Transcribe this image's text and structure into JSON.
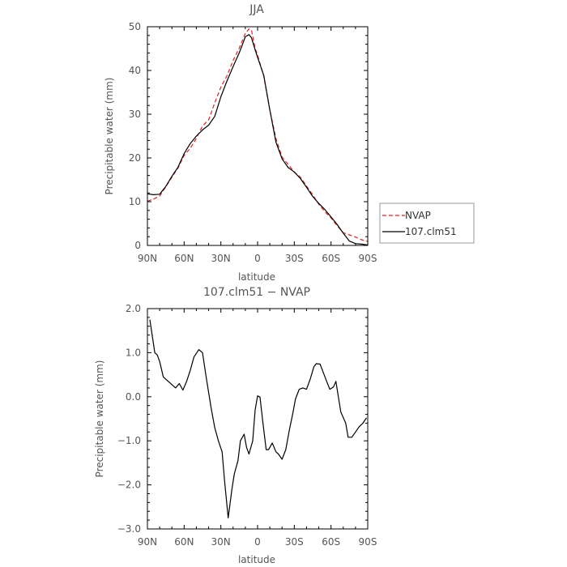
{
  "chart_data": [
    {
      "type": "line",
      "title": "JJA",
      "xlabel": "latitude",
      "ylabel": "Precipitable water (mm)",
      "xlim": [
        90,
        -90
      ],
      "ylim": [
        0,
        50
      ],
      "xticks": [
        90,
        60,
        30,
        0,
        -30,
        -60,
        -90
      ],
      "xtick_labels": [
        "90N",
        "60N",
        "30N",
        "0",
        "30S",
        "60S",
        "90S"
      ],
      "yticks": [
        0,
        10,
        20,
        30,
        40,
        50
      ],
      "ytick_labels": [
        "0",
        "10",
        "20",
        "30",
        "40",
        "50"
      ],
      "grid": false,
      "legend_position": "right-bottom",
      "series": [
        {
          "name": "NVAP",
          "color": "#dd2222",
          "dash": "dashed",
          "x": [
            90,
            85,
            80,
            75,
            70,
            65,
            60,
            55,
            50,
            45,
            40,
            35,
            30,
            25,
            20,
            15,
            10,
            7,
            5,
            2,
            0,
            -5,
            -10,
            -15,
            -20,
            -25,
            -30,
            -35,
            -40,
            -45,
            -50,
            -55,
            -60,
            -65,
            -70,
            -75,
            -80,
            -85,
            -90
          ],
          "values": [
            10.1,
            10.6,
            11.3,
            13.4,
            15.6,
            17.7,
            20.6,
            22.2,
            24.5,
            27.3,
            28.7,
            32.6,
            36.2,
            38.8,
            42.3,
            45.1,
            48.5,
            49.5,
            49.3,
            45.0,
            43.5,
            38.7,
            31.0,
            24.4,
            20.2,
            18.5,
            16.8,
            15.6,
            13.6,
            11.6,
            9.4,
            7.7,
            6.3,
            4.5,
            2.9,
            2.4,
            1.9,
            1.3,
            0.9
          ]
        },
        {
          "name": "107.clm51",
          "color": "#000000",
          "dash": "solid",
          "x": [
            90,
            85,
            80,
            75,
            70,
            65,
            60,
            55,
            50,
            45,
            40,
            35,
            30,
            25,
            20,
            15,
            10,
            7,
            5,
            2,
            0,
            -5,
            -10,
            -15,
            -20,
            -25,
            -30,
            -35,
            -40,
            -45,
            -50,
            -55,
            -60,
            -65,
            -70,
            -75,
            -80,
            -85,
            -90
          ],
          "values": [
            11.8,
            11.6,
            11.7,
            13.5,
            15.8,
            17.9,
            21.0,
            23.3,
            25.0,
            26.4,
            27.5,
            29.5,
            34.0,
            37.6,
            40.9,
            44.0,
            47.7,
            48.2,
            47.5,
            44.7,
            43.0,
            38.9,
            31.0,
            23.6,
            19.8,
            17.8,
            16.8,
            15.3,
            13.3,
            11.2,
            9.6,
            8.2,
            6.5,
            4.8,
            2.8,
            1.0,
            0.4,
            0.3,
            0.1
          ]
        }
      ]
    },
    {
      "type": "line",
      "title": "107.clm51 − NVAP",
      "xlabel": "latitude",
      "ylabel": "Precipitable water (mm)",
      "xlim": [
        90,
        -90
      ],
      "ylim": [
        -3.0,
        2.0
      ],
      "xticks": [
        90,
        60,
        30,
        0,
        -30,
        -60,
        -90
      ],
      "xtick_labels": [
        "90N",
        "60N",
        "30N",
        "0",
        "30S",
        "60S",
        "90S"
      ],
      "yticks": [
        2.0,
        1.0,
        0.0,
        -1.0,
        -2.0,
        -3.0
      ],
      "ytick_labels": [
        "2.0",
        "1.0",
        "0.0",
        "−1.0",
        "−2.0",
        "−3.0"
      ],
      "grid": false,
      "series": [
        {
          "color": "#000000",
          "dash": "solid",
          "x": [
            88,
            84,
            82,
            80,
            77,
            73,
            69,
            67,
            64,
            61,
            58,
            55,
            52,
            48,
            45,
            42,
            38,
            35,
            32,
            29,
            27,
            24,
            21,
            19,
            16,
            14,
            11,
            9,
            7,
            4,
            2,
            0,
            -2,
            -4,
            -7,
            -9,
            -12,
            -15,
            -17,
            -20,
            -23,
            -26,
            -29,
            -31,
            -34,
            -37,
            -40,
            -43,
            -46,
            -48,
            -51,
            -53,
            -56,
            -59,
            -62,
            -64,
            -66,
            -68,
            -72,
            -74,
            -77,
            -80,
            -83,
            -86,
            -89
          ],
          "values": [
            1.75,
            1.0,
            0.95,
            0.8,
            0.45,
            0.35,
            0.25,
            0.2,
            0.3,
            0.15,
            0.35,
            0.6,
            0.9,
            1.07,
            1.0,
            0.45,
            -0.25,
            -0.7,
            -1.0,
            -1.25,
            -1.9,
            -2.75,
            -2.1,
            -1.75,
            -1.45,
            -1.0,
            -0.85,
            -1.15,
            -1.3,
            -1.0,
            -0.3,
            0.02,
            -0.01,
            -0.5,
            -1.2,
            -1.2,
            -1.05,
            -1.25,
            -1.3,
            -1.42,
            -1.2,
            -0.75,
            -0.35,
            -0.05,
            0.17,
            0.2,
            0.17,
            0.4,
            0.68,
            0.75,
            0.74,
            0.6,
            0.38,
            0.17,
            0.22,
            0.35,
            0.0,
            -0.35,
            -0.6,
            -0.92,
            -0.92,
            -0.8,
            -0.68,
            -0.6,
            -0.48
          ]
        }
      ]
    }
  ]
}
